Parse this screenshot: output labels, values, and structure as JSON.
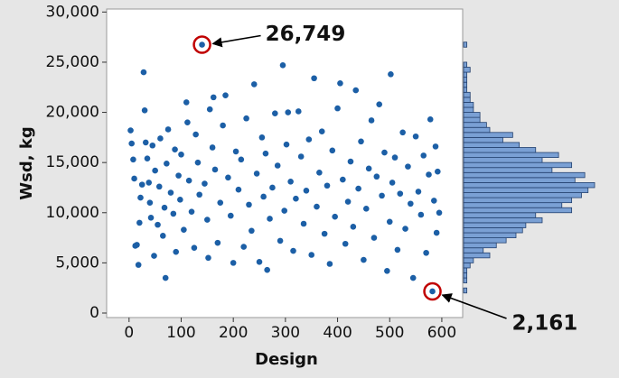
{
  "chart_data": {
    "type": "scatter",
    "x_label": "Design",
    "y_label": "Wsd, kg",
    "xlim": [
      -43,
      640
    ],
    "ylim": [
      -450,
      30300
    ],
    "xticks": [
      0,
      100,
      200,
      300,
      400,
      500,
      600
    ],
    "yticks": [
      0,
      {
        "value": 5000,
        "label": "5,000"
      },
      {
        "value": 10000,
        "label": "10,000"
      },
      {
        "value": 15000,
        "label": "15,000"
      },
      {
        "value": 20000,
        "label": "20,000"
      },
      {
        "value": 25000,
        "label": "25,000"
      },
      {
        "value": 30000,
        "label": "30,000"
      }
    ],
    "color": "#1c5fa6",
    "x": [
      3,
      5,
      8,
      10,
      12,
      15,
      18,
      20,
      22,
      25,
      28,
      30,
      32,
      35,
      38,
      40,
      42,
      45,
      48,
      50,
      55,
      58,
      60,
      65,
      68,
      70,
      72,
      75,
      80,
      85,
      88,
      90,
      95,
      98,
      100,
      105,
      110,
      112,
      115,
      120,
      125,
      128,
      132,
      135,
      140,
      145,
      150,
      152,
      155,
      160,
      162,
      165,
      170,
      175,
      180,
      185,
      190,
      195,
      200,
      205,
      210,
      215,
      220,
      225,
      230,
      235,
      240,
      245,
      250,
      255,
      258,
      262,
      265,
      270,
      275,
      280,
      285,
      290,
      295,
      298,
      302,
      305,
      310,
      315,
      320,
      325,
      330,
      335,
      340,
      345,
      350,
      355,
      360,
      365,
      370,
      375,
      380,
      385,
      390,
      395,
      400,
      405,
      410,
      415,
      420,
      425,
      430,
      435,
      440,
      445,
      450,
      455,
      460,
      465,
      470,
      475,
      480,
      485,
      490,
      495,
      500,
      502,
      505,
      510,
      515,
      520,
      525,
      530,
      535,
      540,
      545,
      550,
      555,
      560,
      565,
      570,
      575,
      578,
      582,
      585,
      588,
      590,
      592,
      595
    ],
    "y": [
      18200,
      16900,
      15300,
      13400,
      6700,
      6800,
      4800,
      9000,
      11500,
      12800,
      24000,
      20200,
      17000,
      15400,
      13000,
      11000,
      9500,
      16700,
      5700,
      14200,
      8800,
      12600,
      17400,
      7700,
      10500,
      3500,
      14900,
      18300,
      12000,
      9900,
      16300,
      6100,
      13700,
      11300,
      15800,
      8300,
      21000,
      19000,
      13200,
      10100,
      6500,
      17800,
      15000,
      11800,
      26749,
      12900,
      9300,
      5500,
      20300,
      16500,
      21500,
      14300,
      7000,
      11000,
      18700,
      21700,
      13500,
      9700,
      5000,
      16100,
      12300,
      15300,
      6600,
      19400,
      10800,
      8200,
      22800,
      13900,
      5100,
      17500,
      11600,
      15900,
      4300,
      9400,
      12500,
      19900,
      14700,
      7200,
      24700,
      10200,
      16800,
      20000,
      13100,
      6200,
      11400,
      20100,
      15600,
      8900,
      12200,
      17300,
      5800,
      23400,
      10600,
      14000,
      18100,
      7900,
      12700,
      4900,
      16200,
      9600,
      20400,
      22900,
      13300,
      6900,
      11100,
      15100,
      8600,
      22200,
      12400,
      17100,
      5300,
      10400,
      14400,
      19200,
      7500,
      13600,
      20800,
      11700,
      16000,
      4200,
      9100,
      23800,
      13000,
      15500,
      6300,
      11900,
      18000,
      8400,
      14600,
      10900,
      3500,
      17600,
      12100,
      9800,
      15700,
      6000,
      13800,
      19300,
      2161,
      11200,
      16600,
      8000,
      14100,
      10000
    ],
    "histogram": {
      "color": "#7aa0d4",
      "bins": [
        2000,
        2500,
        3000,
        3500,
        4000,
        4500,
        5000,
        5500,
        6000,
        6500,
        7000,
        7500,
        8000,
        8500,
        9000,
        9500,
        10000,
        10500,
        11000,
        11500,
        12000,
        12500,
        13000,
        13500,
        14000,
        14500,
        15000,
        15500,
        16000,
        16500,
        17000,
        17500,
        18000,
        18500,
        19000,
        19500,
        20000,
        20500,
        21000,
        21500,
        22000,
        22500,
        23000,
        23500,
        24000,
        24500,
        25000,
        25500,
        26000,
        26500,
        27000
      ],
      "counts": [
        1,
        0,
        1,
        1,
        1,
        2,
        3,
        8,
        6,
        10,
        13,
        16,
        18,
        19,
        24,
        22,
        33,
        30,
        33,
        36,
        38,
        40,
        34,
        37,
        27,
        33,
        24,
        29,
        22,
        17,
        12,
        15,
        8,
        7,
        5,
        5,
        3,
        3,
        2,
        2,
        1,
        1,
        1,
        1,
        2,
        1,
        0,
        0,
        0,
        1
      ]
    },
    "annotations": [
      {
        "label": "26,749",
        "x": 140,
        "y": 26749
      },
      {
        "label": "2,161",
        "x": 582,
        "y": 2161
      }
    ]
  }
}
